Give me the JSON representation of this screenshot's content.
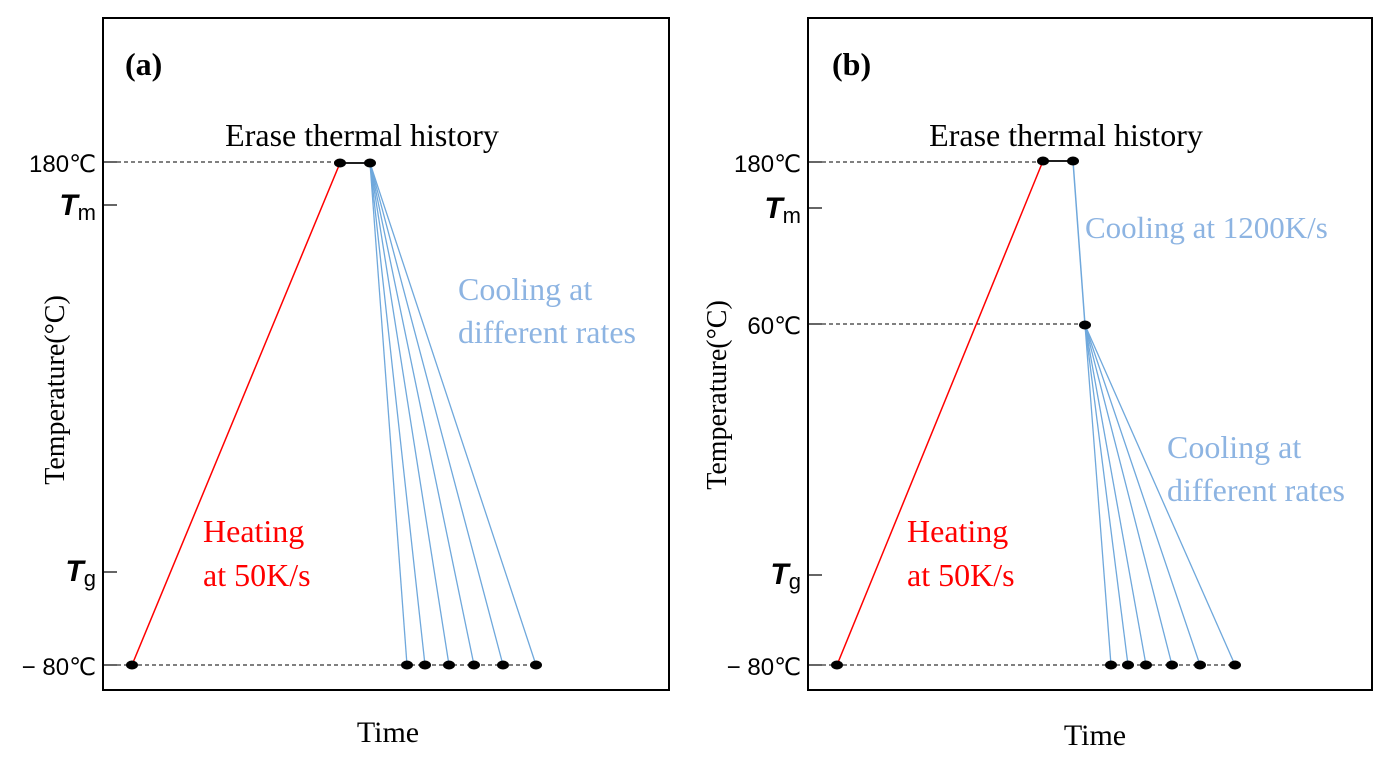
{
  "panels": [
    {
      "id": "a",
      "label": "(a)",
      "header": "Erase thermal history",
      "xlabel": "Time",
      "ylabel": "Temperature(°C)",
      "ticks": {
        "t180": "180℃",
        "tm_main": "T",
        "tm_sub": "m",
        "tg_main": "T",
        "tg_sub": "g",
        "tmin": "− 80℃"
      },
      "heating": [
        "Heating",
        "at 50K/s"
      ],
      "cooling": [
        "Cooling at",
        "different rates"
      ]
    },
    {
      "id": "b",
      "label": "(b)",
      "header": "Erase thermal history",
      "xlabel": "Time",
      "ylabel": "Temperature(°C)",
      "ticks": {
        "t180": "180℃",
        "tm_main": "T",
        "tm_sub": "m",
        "t60": "60℃",
        "tg_main": "T",
        "tg_sub": "g",
        "tmin": "− 80℃"
      },
      "heating": [
        "Heating",
        "at 50K/s"
      ],
      "fast_cooling": "Cooling at 1200K/s",
      "cooling": [
        "Cooling at",
        "different rates"
      ]
    }
  ],
  "colors": {
    "heating": "#ff0000",
    "cooling": "#6fa8dc",
    "cooling_text": "#8db4e2",
    "frame": "#000000",
    "dashed": "#000000"
  }
}
